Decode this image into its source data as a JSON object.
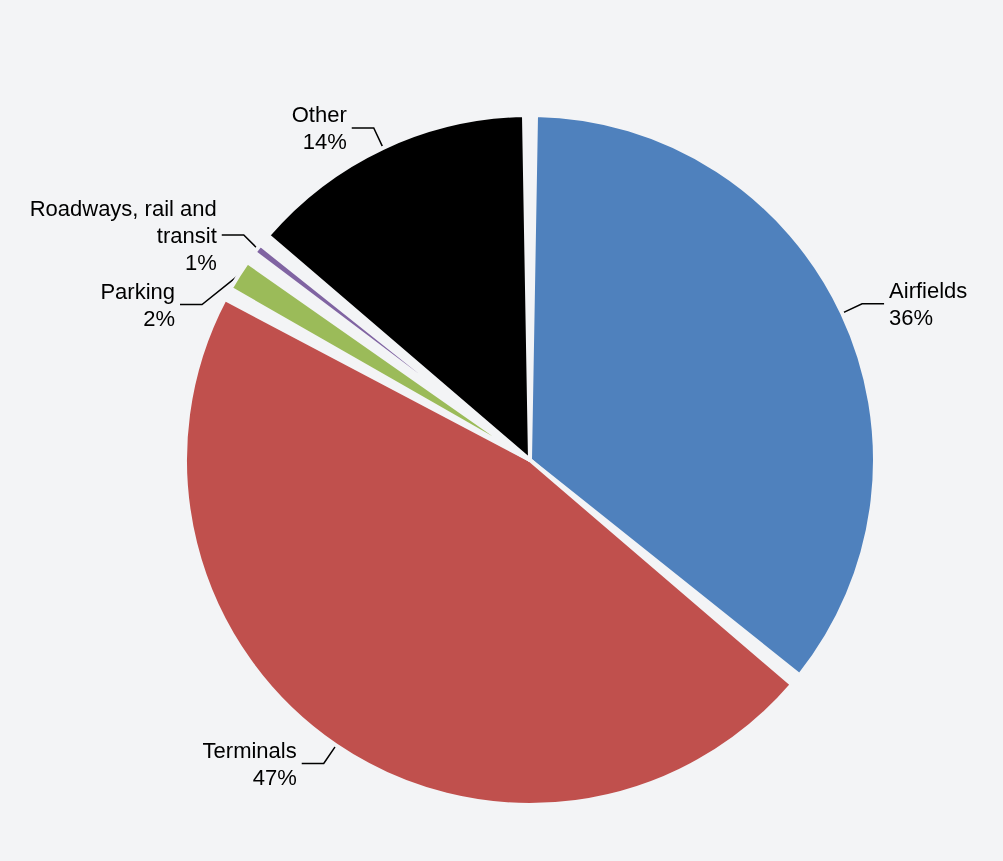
{
  "chart_data": {
    "type": "pie",
    "categories": [
      "Airfields",
      "Terminals",
      "Parking",
      "Roadways, rail and transit",
      "Other"
    ],
    "values": [
      36,
      47,
      2,
      1,
      14
    ],
    "value_labels": [
      "36%",
      "47%",
      "2%",
      "1%",
      "14%"
    ],
    "colors": [
      "#4f81bd",
      "#c0504d",
      "#9bbb59",
      "#8064a2",
      "#000000"
    ]
  }
}
